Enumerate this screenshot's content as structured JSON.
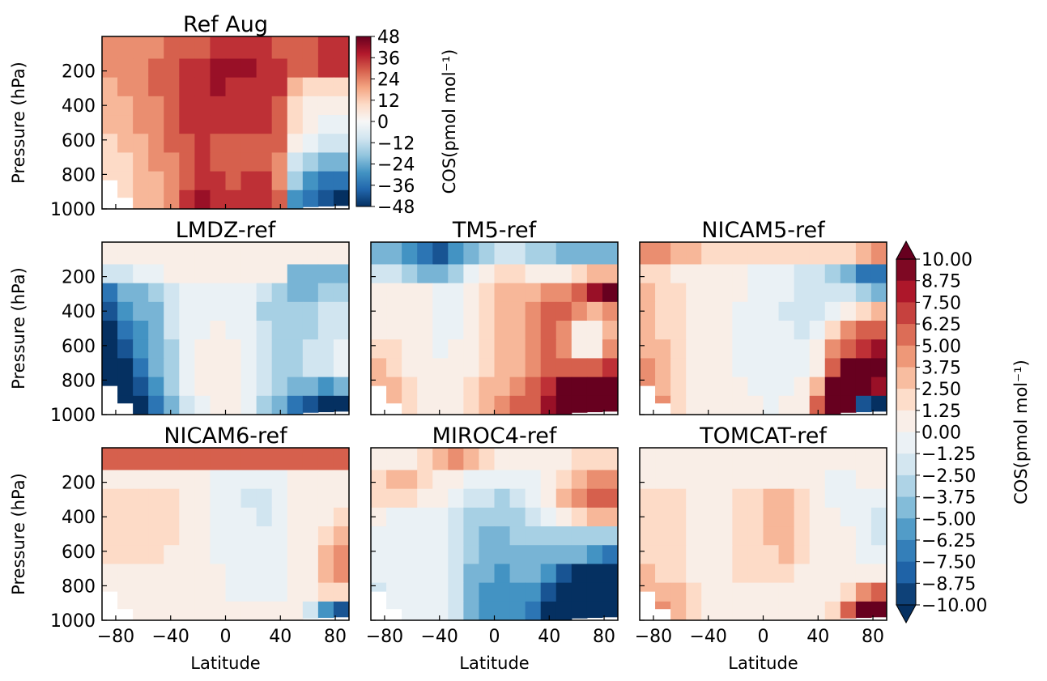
{
  "chart_data": {
    "type": "heatmap",
    "figure_y_label": "Pressure (hPa)",
    "x_axis_label": "Latitude",
    "x_ticks": [
      -80,
      -40,
      0,
      40,
      80
    ],
    "xlim": [
      -90,
      90
    ],
    "y_ticks": [
      200,
      400,
      600,
      800,
      1000
    ],
    "ylim": [
      1000,
      0
    ],
    "colormap": [
      "#053061",
      "#2166ac",
      "#4393c3",
      "#92c5de",
      "#d1e5f0",
      "#f7f7f7",
      "#fddbc7",
      "#f4a582",
      "#d6604d",
      "#b2182b",
      "#67001f"
    ],
    "reference_colorbar": {
      "label": "COS(pmol mol⁻¹)",
      "ticks": [
        "48",
        "36",
        "24",
        "12",
        "0",
        "−12",
        "−24",
        "−36",
        "−48"
      ],
      "range": [
        -48,
        48
      ]
    },
    "difference_colorbar": {
      "label": "COS(pmol mol⁻¹)",
      "ticks": [
        "10.00",
        "8.75",
        "7.50",
        "6.25",
        "5.00",
        "3.75",
        "2.50",
        "1.25",
        "0.00",
        "−1.25",
        "−2.50",
        "−3.75",
        "−5.00",
        "−6.25",
        "−7.50",
        "−8.75",
        "−10.00"
      ],
      "range": [
        -10,
        10
      ]
    },
    "panels": [
      {
        "title": "Ref Aug",
        "scale": "ref",
        "rows": [
          [
            20,
            20,
            22,
            22,
            24,
            26,
            28,
            30,
            30,
            30,
            30,
            28,
            26,
            24,
            30,
            32
          ],
          [
            18,
            20,
            22,
            24,
            26,
            30,
            34,
            36,
            36,
            36,
            34,
            30,
            26,
            28,
            32,
            34
          ],
          [
            16,
            18,
            20,
            24,
            28,
            32,
            34,
            36,
            34,
            34,
            32,
            30,
            16,
            10,
            8,
            8
          ],
          [
            14,
            16,
            18,
            22,
            26,
            30,
            32,
            34,
            32,
            32,
            32,
            28,
            10,
            4,
            2,
            2
          ],
          [
            12,
            14,
            18,
            22,
            26,
            30,
            32,
            30,
            30,
            30,
            30,
            26,
            6,
            0,
            -2,
            -4
          ],
          [
            10,
            12,
            16,
            20,
            24,
            28,
            30,
            28,
            28,
            28,
            28,
            24,
            2,
            -6,
            -10,
            -12
          ],
          [
            8,
            10,
            14,
            18,
            22,
            28,
            30,
            26,
            26,
            28,
            28,
            22,
            -10,
            -18,
            -22,
            -24
          ],
          [
            6,
            8,
            12,
            16,
            22,
            28,
            32,
            30,
            28,
            30,
            30,
            22,
            -18,
            -28,
            -32,
            -34
          ],
          [
            4,
            6,
            12,
            16,
            22,
            30,
            36,
            34,
            30,
            32,
            32,
            24,
            -26,
            -36,
            -42,
            -48
          ]
        ]
      },
      {
        "title": "LMDZ-ref",
        "scale": "diff",
        "rows": [
          [
            1,
            1,
            1,
            1,
            1,
            1,
            0.5,
            0.5,
            1,
            1,
            1,
            1,
            0.5,
            0.5,
            1,
            1
          ],
          [
            -2,
            -2,
            -1,
            -1,
            0.5,
            0.5,
            0.5,
            0.5,
            0.5,
            0.5,
            0.5,
            0,
            -4,
            -4,
            -5,
            -5
          ],
          [
            -7,
            -5,
            -4,
            -3,
            -2,
            -1,
            -0.5,
            -0.5,
            -1,
            -1,
            -2,
            -3,
            -4,
            -4,
            -3,
            -3
          ],
          [
            -8,
            -6,
            -5,
            -4,
            -2,
            -1,
            -1,
            -1,
            -1,
            -1,
            -3,
            -3,
            -3,
            -3,
            -2,
            -2
          ],
          [
            -9,
            -7,
            -6,
            -4,
            -2,
            -1,
            -0.5,
            0.5,
            -0.5,
            -1,
            -2,
            -3,
            -3,
            -3,
            -2,
            -2
          ],
          [
            -9,
            -8,
            -6,
            -5,
            -3,
            -1,
            0.5,
            0.5,
            0,
            -1,
            -2,
            -3,
            -3,
            -2,
            -2,
            -1
          ],
          [
            -10,
            -9,
            -7,
            -5,
            -3,
            -1,
            0,
            0.5,
            0,
            -1,
            -2,
            -3,
            -3,
            -2,
            -2,
            -1
          ],
          [
            -10,
            -9,
            -8,
            -6,
            -3,
            -1,
            0,
            0.5,
            0,
            -1,
            -2,
            -3,
            -4,
            -5,
            -6,
            -5
          ],
          [
            -10,
            -10,
            -9,
            -7,
            -4,
            -2,
            -1,
            0,
            0,
            -1,
            -3,
            -4,
            -7,
            -8,
            -9,
            -9
          ]
        ]
      },
      {
        "title": "TM5-ref",
        "scale": "diff",
        "rows": [
          [
            -5,
            -5,
            -6,
            -7,
            -8,
            -6,
            -4,
            -3,
            -2,
            -2,
            -3,
            -3,
            -4,
            -4,
            -5,
            -5
          ],
          [
            -2,
            -2,
            -3,
            -4,
            -5,
            -3,
            -1,
            1,
            2,
            2,
            1,
            1,
            1,
            2,
            3,
            3
          ],
          [
            1,
            1,
            0,
            0,
            -1,
            -1,
            0,
            2,
            3,
            3,
            3,
            4,
            4,
            5,
            8,
            9
          ],
          [
            1,
            1,
            0,
            0,
            -1,
            -1,
            1,
            2,
            3,
            3,
            4,
            5,
            5,
            4,
            3,
            4
          ],
          [
            1,
            1,
            1,
            0,
            -1,
            -1,
            1,
            2,
            3,
            3,
            4,
            5,
            4,
            1,
            1,
            3
          ],
          [
            2,
            2,
            1,
            0,
            -1,
            0,
            1,
            2,
            3,
            3,
            4,
            5,
            4,
            1,
            1,
            4
          ],
          [
            3,
            2,
            1,
            0,
            0,
            0,
            1,
            2,
            3,
            3,
            4,
            5,
            5,
            5,
            6,
            7
          ],
          [
            3,
            3,
            2,
            1,
            0,
            1,
            2,
            3,
            3,
            4,
            5,
            7,
            9,
            10,
            10,
            10
          ],
          [
            4,
            3,
            2,
            1,
            0,
            1,
            2,
            3,
            4,
            5,
            6,
            8,
            10,
            10,
            10,
            10
          ]
        ]
      },
      {
        "title": "NICAM5-ref",
        "scale": "diff",
        "rows": [
          [
            4,
            4,
            3,
            3,
            2,
            2,
            2,
            2,
            2,
            2,
            2,
            2,
            2,
            2,
            3,
            4
          ],
          [
            2,
            2,
            1,
            1,
            1,
            0,
            0,
            -1,
            -1,
            -1,
            -2,
            -2,
            -3,
            -5,
            -7,
            -7
          ],
          [
            3,
            2,
            2,
            1,
            1,
            0,
            0,
            -1,
            -1,
            -1,
            -2,
            -2,
            -2,
            -2,
            -3,
            -4
          ],
          [
            3,
            2,
            2,
            1,
            1,
            0,
            -1,
            -1,
            -1,
            -2,
            -2,
            -2,
            -1,
            1,
            2,
            3
          ],
          [
            3,
            2,
            2,
            1,
            1,
            0,
            -1,
            -1,
            -1,
            -1,
            -2,
            -1,
            2,
            4,
            5,
            6
          ],
          [
            3,
            3,
            2,
            1,
            1,
            0,
            -1,
            -1,
            -1,
            -1,
            -1,
            0,
            4,
            6,
            7,
            8
          ],
          [
            4,
            3,
            2,
            1,
            0,
            0,
            -1,
            -1,
            -1,
            -1,
            -1,
            1,
            6,
            9,
            9,
            9
          ],
          [
            4,
            3,
            2,
            1,
            0,
            0,
            0,
            -1,
            -1,
            -1,
            0,
            3,
            9,
            10,
            9,
            8
          ],
          [
            5,
            4,
            2,
            1,
            0,
            0,
            0,
            0,
            -1,
            0,
            1,
            5,
            10,
            10,
            -8,
            -9
          ]
        ]
      },
      {
        "title": "NICAM6-ref",
        "scale": "diff",
        "rows": [
          [
            5,
            5,
            5,
            5,
            5,
            5,
            5,
            5,
            5,
            5,
            5,
            5,
            5,
            5,
            5,
            5
          ],
          [
            1,
            1,
            1,
            1,
            0.5,
            0,
            0,
            -1,
            -1,
            -1,
            -1,
            -1,
            0,
            1,
            1,
            1
          ],
          [
            2,
            2,
            2,
            2,
            2,
            1,
            0,
            -1,
            -1,
            -2,
            -2,
            -1,
            0,
            1,
            1,
            1
          ],
          [
            2,
            2,
            2,
            2,
            2,
            1,
            0,
            -1,
            -1,
            -1,
            -2,
            -1,
            0,
            1,
            1,
            2
          ],
          [
            2,
            2,
            2,
            2,
            2,
            1,
            0,
            -1,
            -1,
            -1,
            -1,
            -1,
            0,
            1,
            2,
            3
          ],
          [
            2,
            2,
            2,
            2,
            1,
            1,
            0,
            -1,
            -1,
            -1,
            -1,
            -1,
            0,
            1,
            3,
            4
          ],
          [
            1,
            1,
            1,
            1,
            1,
            1,
            0,
            0,
            -1,
            -1,
            -1,
            -1,
            0,
            1,
            3,
            4
          ],
          [
            1,
            1,
            1,
            1,
            1,
            1,
            0,
            0,
            -1,
            -1,
            -1,
            -1,
            0,
            0,
            2,
            2
          ],
          [
            1,
            1,
            1,
            1,
            1,
            1,
            1,
            1,
            0,
            0,
            0,
            0,
            0,
            -2,
            -6,
            -8
          ]
        ]
      },
      {
        "title": "MIROC4-ref",
        "scale": "diff",
        "rows": [
          [
            0.5,
            1,
            1,
            2,
            3,
            4,
            3,
            2,
            1,
            1,
            1,
            1,
            1,
            2,
            2,
            2
          ],
          [
            2,
            3,
            3,
            2,
            1,
            0,
            -1,
            -1,
            -1,
            -1,
            -1,
            0,
            2,
            3,
            4,
            4
          ],
          [
            2,
            2,
            2,
            1,
            0,
            -1,
            -2,
            -2,
            -3,
            -2,
            -1,
            0,
            3,
            4,
            6,
            5
          ],
          [
            0,
            -1,
            -1,
            -1,
            -1,
            -2,
            -3,
            -3,
            -3,
            -3,
            -2,
            -1,
            1,
            2,
            3,
            3
          ],
          [
            -1,
            -1,
            -1,
            -1,
            -1,
            -2,
            -3,
            -4,
            -4,
            -3,
            -3,
            -3,
            -3,
            -3,
            -3,
            -3
          ],
          [
            -1,
            -1,
            -1,
            -1,
            -1,
            -2,
            -3,
            -5,
            -5,
            -5,
            -4,
            -4,
            -5,
            -5,
            -6,
            -7
          ],
          [
            -1,
            -1,
            -1,
            -1,
            -1,
            -2,
            -4,
            -5,
            -6,
            -5,
            -5,
            -6,
            -8,
            -9,
            -9,
            -9
          ],
          [
            -2,
            -1,
            -1,
            -1,
            -1,
            -2,
            -4,
            -6,
            -6,
            -6,
            -6,
            -8,
            -10,
            -10,
            -10,
            -10
          ],
          [
            -3,
            -1,
            -1,
            -1,
            -1,
            -2,
            -4,
            -6,
            -6,
            -6,
            -7,
            -9,
            -10,
            -10,
            -10,
            -10
          ]
        ]
      },
      {
        "title": "TOMCAT-ref",
        "scale": "diff",
        "rows": [
          [
            1,
            1,
            1,
            1,
            1,
            1,
            0.5,
            0.5,
            1,
            1,
            0.5,
            0,
            0,
            0.5,
            0.5,
            0.5
          ],
          [
            1,
            1,
            1,
            1,
            0.5,
            0,
            0,
            0,
            0,
            1,
            1,
            0,
            -1,
            -1,
            0,
            0
          ],
          [
            2,
            2,
            2,
            1,
            1,
            1,
            2,
            2,
            3,
            3,
            2,
            1,
            -1,
            -1,
            -1,
            -1
          ],
          [
            2,
            2,
            2,
            1,
            1,
            1,
            2,
            2,
            3,
            3,
            2,
            1,
            0,
            -1,
            -1,
            -2
          ],
          [
            2,
            2,
            2,
            1,
            1,
            1,
            2,
            2,
            3,
            3,
            2,
            1,
            0,
            0,
            -1,
            -2
          ],
          [
            2,
            2,
            2,
            1,
            1,
            1,
            2,
            2,
            2,
            3,
            2,
            1,
            0,
            0,
            -1,
            -1
          ],
          [
            3,
            2,
            2,
            1,
            1,
            1,
            2,
            2,
            2,
            2,
            1,
            1,
            0,
            0,
            0,
            0
          ],
          [
            3,
            3,
            3,
            2,
            1,
            1,
            1,
            1,
            1,
            1,
            1,
            1,
            1,
            2,
            4,
            5
          ],
          [
            4,
            4,
            3,
            2,
            1,
            1,
            1,
            1,
            1,
            1,
            1,
            1,
            2,
            5,
            9,
            10
          ]
        ]
      }
    ]
  }
}
